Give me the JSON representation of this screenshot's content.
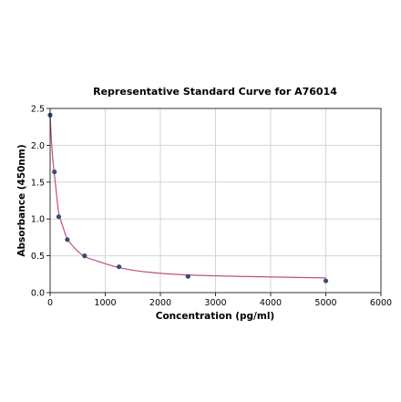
{
  "chart_data": {
    "type": "scatter",
    "title": "Representative Standard Curve for A76014",
    "xlabel": "Concentration (pg/ml)",
    "ylabel": "Absorbance (450nm)",
    "xlim": [
      0,
      6000
    ],
    "ylim": [
      0,
      2.5
    ],
    "xticks": [
      0,
      1000,
      2000,
      3000,
      4000,
      5000,
      6000
    ],
    "yticks": [
      0.0,
      0.5,
      1.0,
      1.5,
      2.0,
      2.5
    ],
    "xtick_labels": [
      "0",
      "1000",
      "2000",
      "3000",
      "4000",
      "5000",
      "6000"
    ],
    "ytick_labels": [
      "0.0",
      "0.5",
      "1.0",
      "1.5",
      "2.0",
      "2.5"
    ],
    "grid": true,
    "series": [
      {
        "kind": "points",
        "x": [
          0,
          78,
          156,
          312,
          625,
          1250,
          2500,
          5000
        ],
        "y": [
          2.41,
          1.64,
          1.03,
          0.72,
          0.5,
          0.35,
          0.22,
          0.16
        ],
        "color": "#3b4a78"
      },
      {
        "kind": "fit-curve",
        "x": [
          0,
          25,
          50,
          78,
          110,
          156,
          220,
          312,
          450,
          625,
          850,
          1250,
          1750,
          2500,
          3500,
          5000
        ],
        "y": [
          2.41,
          2.05,
          1.8,
          1.6,
          1.38,
          1.08,
          0.92,
          0.73,
          0.6,
          0.49,
          0.43,
          0.34,
          0.28,
          0.24,
          0.22,
          0.2
        ],
        "color": "#c2507a"
      }
    ]
  }
}
